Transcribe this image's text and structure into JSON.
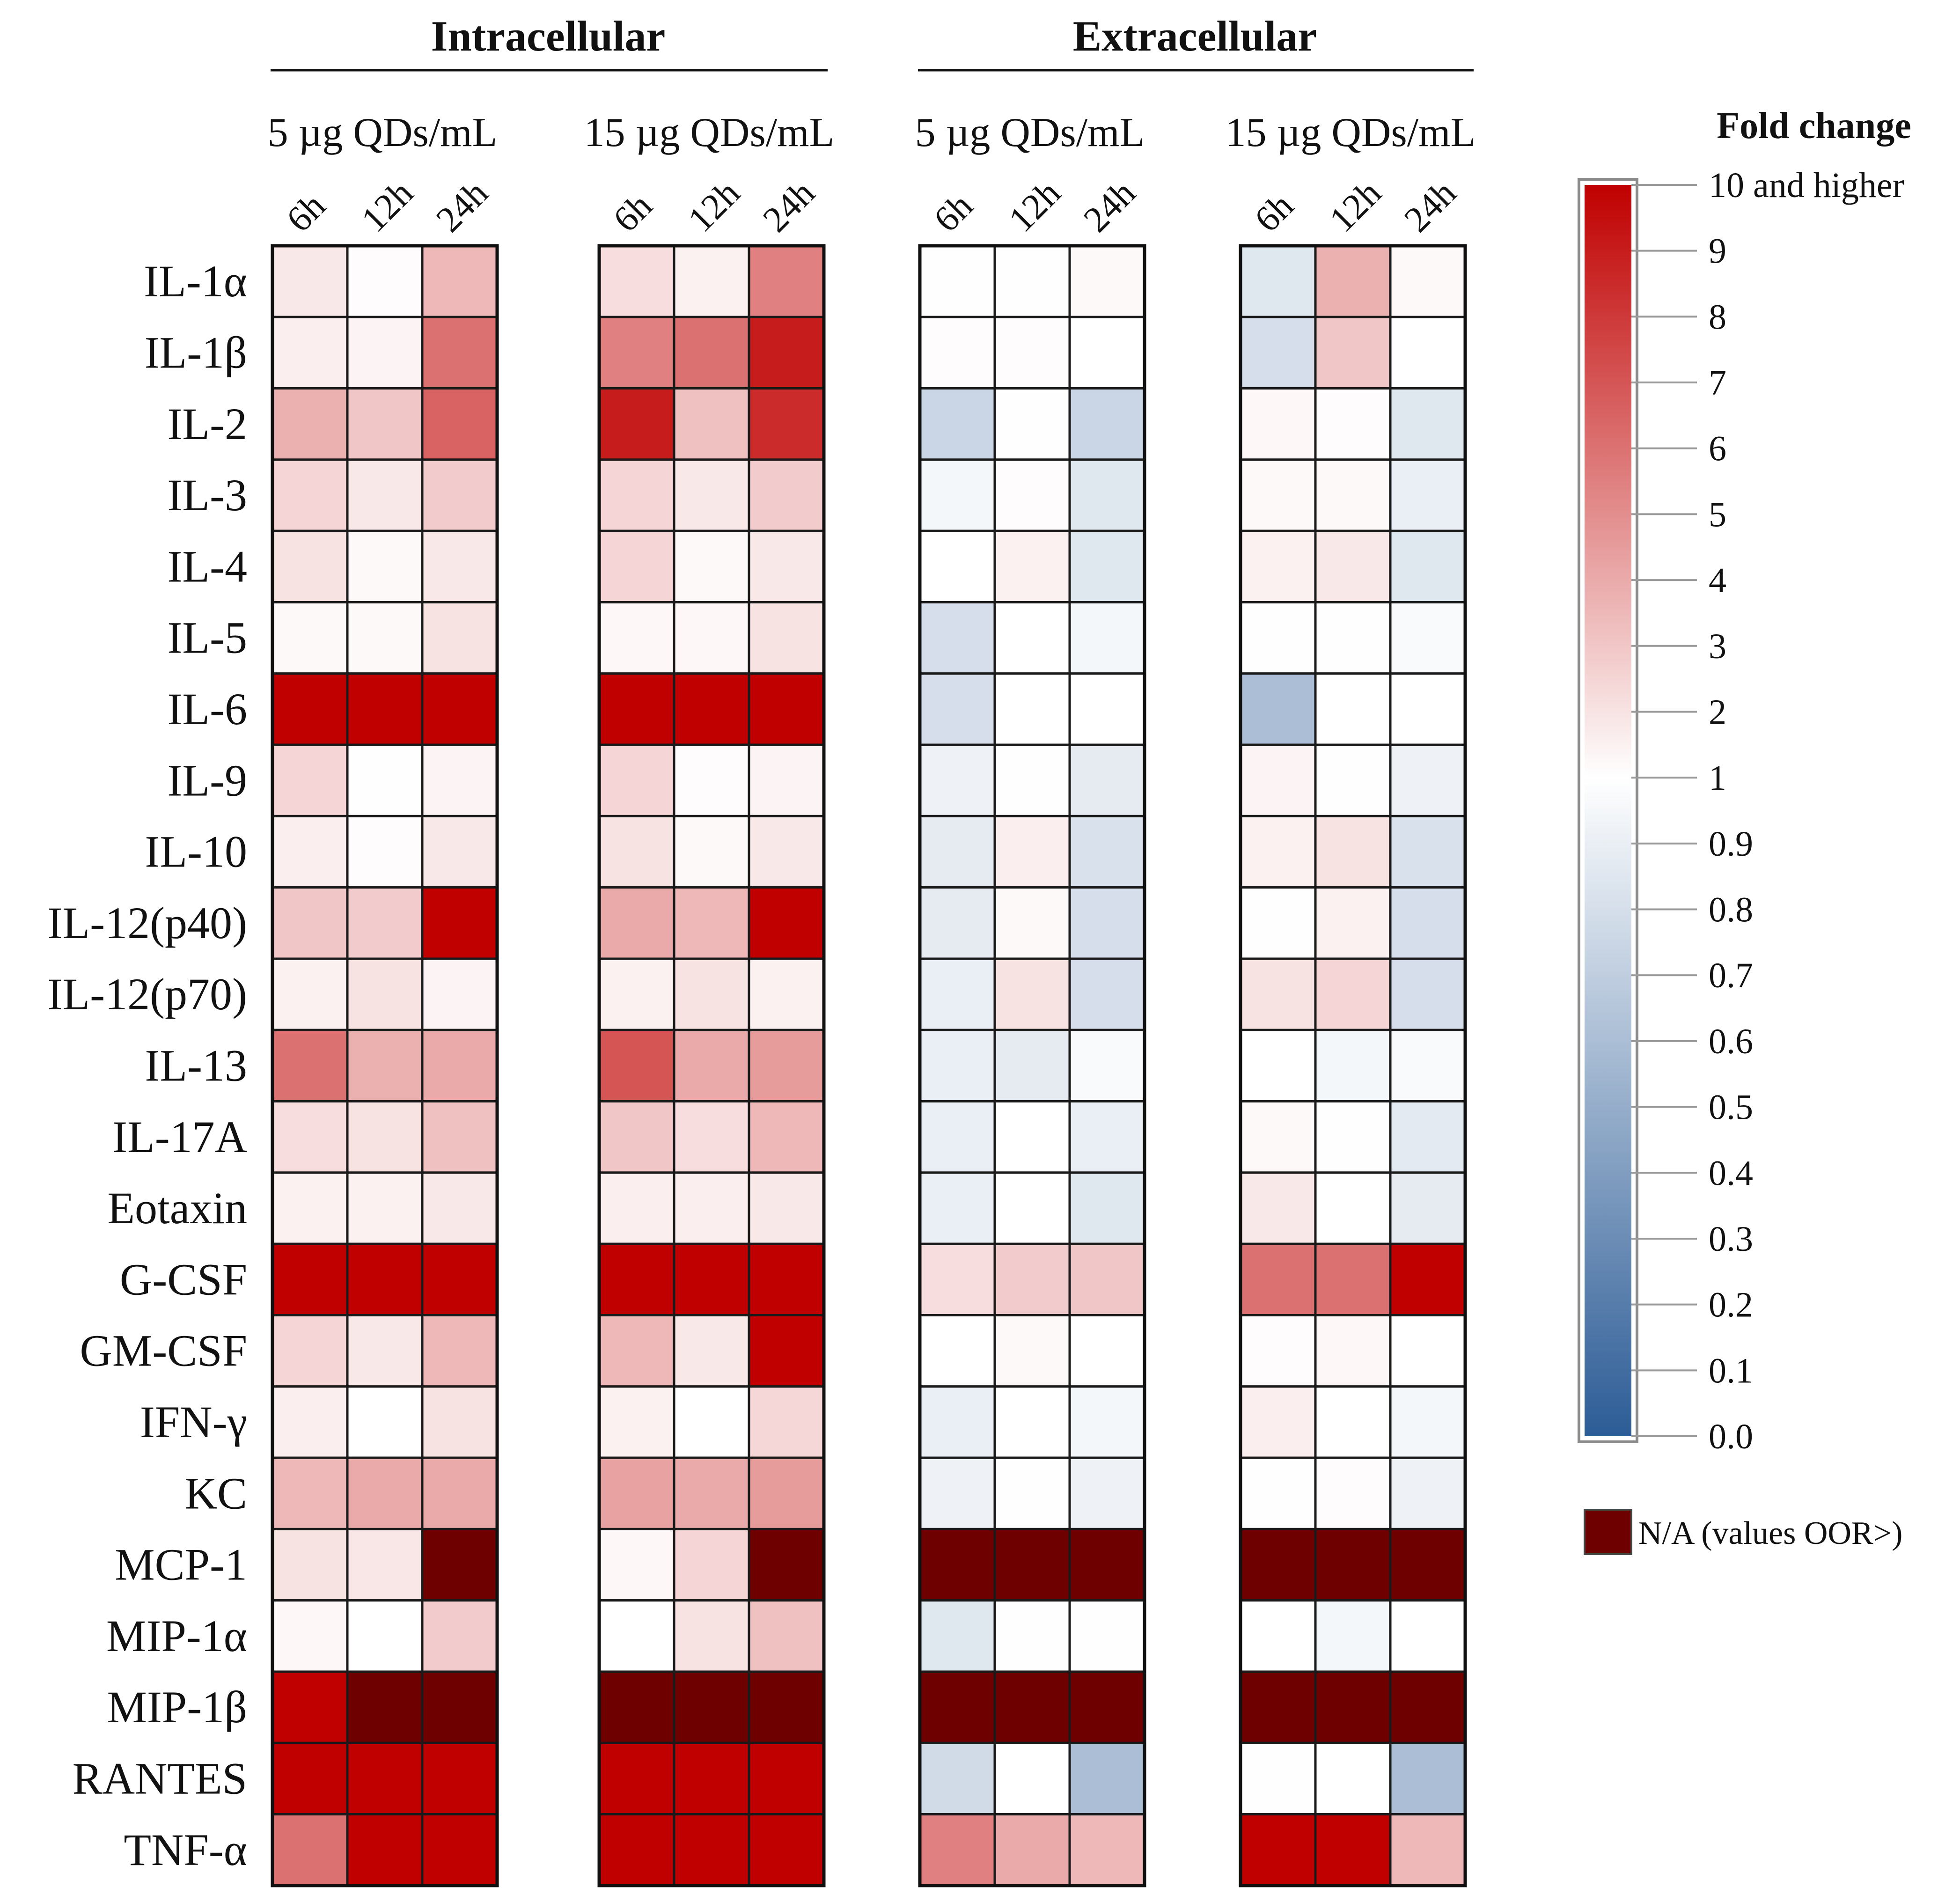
{
  "chart_data": {
    "type": "heatmap",
    "groups": [
      {
        "title": "Intracellular",
        "concentrations": [
          "5 µg QDs/mL",
          "15 µg QDs/mL"
        ]
      },
      {
        "title": "Extracellular",
        "concentrations": [
          "5 µg QDs/mL",
          "15 µg QDs/mL"
        ]
      }
    ],
    "columns": [
      {
        "group": "Intracellular",
        "concentration": "5 µg QDs/mL",
        "times": [
          "6h",
          "12h",
          "24h"
        ]
      },
      {
        "group": "Intracellular",
        "concentration": "15 µg QDs/mL",
        "times": [
          "6h",
          "12h",
          "24h"
        ]
      },
      {
        "group": "Extracellular",
        "concentration": "5 µg QDs/mL",
        "times": [
          "6h",
          "12h",
          "24h"
        ]
      },
      {
        "group": "Extracellular",
        "concentration": "15 µg QDs/mL",
        "times": [
          "6h",
          "12h",
          "24h"
        ]
      }
    ],
    "rows": [
      "IL-1α",
      "IL-1β",
      "IL-2",
      "IL-3",
      "IL-4",
      "IL-5",
      "IL-6",
      "IL-9",
      "IL-10",
      "IL-12(p40)",
      "IL-12(p70)",
      "IL-13",
      "IL-17A",
      "Eotaxin",
      "G-CSF",
      "GM-CSF",
      "IFN-γ",
      "KC",
      "MCP-1",
      "MIP-1α",
      "MIP-1β",
      "RANTES",
      "TNF-α"
    ],
    "values": [
      [
        1.8,
        1.1,
        3.5,
        2.2,
        1.5,
        5.5,
        1.05,
        1.05,
        1.2,
        0.85,
        3.8,
        1.2
      ],
      [
        1.6,
        1.4,
        6.0,
        5.5,
        6.0,
        9.0,
        1.1,
        1.1,
        1.0,
        0.8,
        3.0,
        1.0
      ],
      [
        3.8,
        3.0,
        6.5,
        9.0,
        3.2,
        8.5,
        0.75,
        1.05,
        0.75,
        1.3,
        1.1,
        0.85
      ],
      [
        2.5,
        1.8,
        2.8,
        2.5,
        1.8,
        2.8,
        0.95,
        1.1,
        0.85,
        1.2,
        1.2,
        0.9
      ],
      [
        2.0,
        1.2,
        1.8,
        2.5,
        1.2,
        1.8,
        1.0,
        1.5,
        0.85,
        1.5,
        1.8,
        0.85
      ],
      [
        1.2,
        1.2,
        2.0,
        1.3,
        1.3,
        2.0,
        0.8,
        1.0,
        0.95,
        1.05,
        1.05,
        0.97
      ],
      [
        10,
        10,
        10,
        10,
        10,
        10,
        0.8,
        1.0,
        1.0,
        0.6,
        1.0,
        1.0
      ],
      [
        2.5,
        1.05,
        1.4,
        2.5,
        1.1,
        1.4,
        0.92,
        1.02,
        0.88,
        1.4,
        1.02,
        0.92
      ],
      [
        1.6,
        1.1,
        1.8,
        2.0,
        1.2,
        1.8,
        0.88,
        1.6,
        0.82,
        1.5,
        2.0,
        0.82
      ],
      [
        3.0,
        2.8,
        10,
        4.0,
        3.5,
        10,
        0.88,
        1.2,
        0.8,
        1.02,
        1.5,
        0.8
      ],
      [
        1.5,
        2.0,
        1.4,
        1.5,
        2.0,
        1.5,
        0.9,
        2.0,
        0.8,
        2.0,
        2.5,
        0.8
      ],
      [
        6.0,
        3.8,
        4.0,
        7.0,
        4.0,
        4.5,
        0.9,
        0.88,
        0.97,
        1.0,
        0.95,
        0.97
      ],
      [
        2.2,
        2.0,
        3.2,
        3.0,
        2.2,
        3.5,
        0.9,
        1.0,
        0.9,
        1.2,
        1.02,
        0.87
      ],
      [
        1.5,
        1.5,
        1.8,
        1.6,
        1.6,
        1.8,
        0.9,
        1.0,
        0.85,
        1.8,
        1.0,
        0.88
      ],
      [
        10,
        10,
        10,
        10,
        10,
        10,
        2.2,
        2.8,
        3.0,
        6.0,
        6.0,
        10
      ],
      [
        2.5,
        1.8,
        3.5,
        3.5,
        1.8,
        10,
        1.0,
        1.2,
        1.0,
        1.1,
        1.3,
        1.0
      ],
      [
        1.6,
        1.0,
        2.0,
        1.5,
        1.0,
        2.4,
        0.9,
        1.0,
        0.95,
        1.6,
        1.0,
        0.95
      ],
      [
        3.5,
        4.0,
        4.0,
        4.3,
        4.0,
        4.5,
        0.92,
        1.02,
        0.92,
        1.05,
        1.1,
        0.92
      ],
      [
        2.0,
        1.9,
        "N/A",
        1.3,
        2.5,
        "N/A",
        "N/A",
        "N/A",
        "N/A",
        "N/A",
        "N/A",
        "N/A"
      ],
      [
        1.3,
        1.0,
        2.8,
        1.0,
        2.0,
        3.2,
        0.85,
        1.02,
        1.02,
        1.0,
        0.95,
        1.0
      ],
      [
        10,
        "N/A",
        "N/A",
        "N/A",
        "N/A",
        "N/A",
        "N/A",
        "N/A",
        "N/A",
        "N/A",
        "N/A",
        "N/A"
      ],
      [
        10,
        10,
        10,
        10,
        10,
        10,
        0.78,
        1.0,
        0.6,
        1.03,
        1.0,
        0.6
      ],
      [
        6.0,
        10,
        10,
        10,
        10,
        10,
        5.5,
        4.0,
        3.5,
        10,
        10,
        3.5
      ]
    ],
    "scale": {
      "min": 0.0,
      "center": 1,
      "max": 10,
      "min_color": "#2c5c96",
      "center_color": "#ffffff",
      "max_color": "#c00000"
    },
    "legend": {
      "title": "Fold change",
      "ticks": [
        "10 and higher",
        "9",
        "8",
        "7",
        "6",
        "5",
        "4",
        "3",
        "2",
        "1",
        "0.9",
        "0.8",
        "0.7",
        "0.6",
        "0.5",
        "0.4",
        "0.3",
        "0.2",
        "0.1",
        "0.0"
      ],
      "na_label": "N/A (values OOR>)",
      "na_color": "#6e0000",
      "position": "right"
    }
  }
}
